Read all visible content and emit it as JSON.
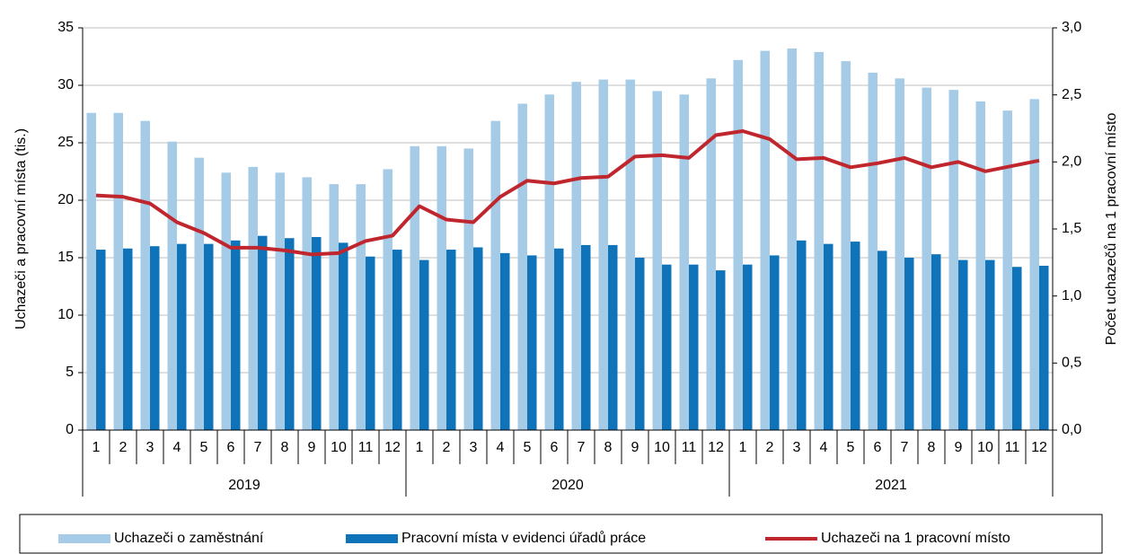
{
  "chart_data": {
    "type": "bar_line",
    "y_label": "Uchazeči a pracovní místa (tis.)",
    "y2_label": "Počet uchazečů  na 1 pracovní místo",
    "categories": [
      "1",
      "2",
      "3",
      "4",
      "5",
      "6",
      "7",
      "8",
      "9",
      "10",
      "11",
      "12",
      "1",
      "2",
      "3",
      "4",
      "5",
      "6",
      "7",
      "8",
      "9",
      "10",
      "11",
      "12",
      "1",
      "2",
      "3",
      "4",
      "5",
      "6",
      "7",
      "8",
      "9",
      "10",
      "11",
      "12"
    ],
    "years": [
      "2019",
      "2020",
      "2021"
    ],
    "ylim": [
      0,
      35
    ],
    "yticks": [
      0,
      5,
      10,
      15,
      20,
      25,
      30,
      35
    ],
    "y2lim": [
      0,
      3
    ],
    "y2ticks": [
      {
        "value": 0,
        "label": "0,0"
      },
      {
        "value": 0.5,
        "label": "0,5"
      },
      {
        "value": 1,
        "label": "1,0"
      },
      {
        "value": 1.5,
        "label": "1,5"
      },
      {
        "value": 2,
        "label": "2,0"
      },
      {
        "value": 2.5,
        "label": "2,5"
      },
      {
        "value": 3,
        "label": "3,0"
      }
    ],
    "grid": true,
    "legend": "bottom",
    "series": [
      {
        "name": "Uchazeči o zaměstnání",
        "type": "bar",
        "color": "#a6cbe6",
        "values": [
          27.6,
          27.6,
          26.9,
          25.1,
          23.7,
          22.4,
          22.9,
          22.4,
          22.0,
          21.4,
          21.4,
          22.7,
          24.7,
          24.7,
          24.5,
          26.9,
          28.4,
          29.2,
          30.3,
          30.5,
          30.5,
          29.5,
          29.2,
          30.6,
          32.2,
          33.0,
          33.2,
          32.9,
          32.1,
          31.1,
          30.6,
          29.8,
          29.6,
          28.6,
          27.8,
          28.8
        ]
      },
      {
        "name": "Pracovní místa v evidenci úřadů práce",
        "type": "bar",
        "color": "#0f73ba",
        "values": [
          15.7,
          15.8,
          16.0,
          16.2,
          16.2,
          16.5,
          16.9,
          16.7,
          16.8,
          16.3,
          15.1,
          15.7,
          14.8,
          15.7,
          15.9,
          15.4,
          15.2,
          15.8,
          16.1,
          16.1,
          15.0,
          14.4,
          14.4,
          13.9,
          14.4,
          15.2,
          16.5,
          16.2,
          16.4,
          15.6,
          15.0,
          15.3,
          14.8,
          14.8,
          14.2,
          14.3
        ]
      },
      {
        "name": "Uchazeči na 1 pracovní místo",
        "type": "line",
        "axis": "y2",
        "color": "#c0262d",
        "values": [
          1.75,
          1.74,
          1.69,
          1.55,
          1.47,
          1.36,
          1.36,
          1.34,
          1.31,
          1.32,
          1.41,
          1.45,
          1.67,
          1.57,
          1.55,
          1.74,
          1.86,
          1.84,
          1.88,
          1.89,
          2.04,
          2.05,
          2.03,
          2.2,
          2.23,
          2.17,
          2.02,
          2.03,
          1.96,
          1.99,
          2.03,
          1.96,
          2.0,
          1.93,
          1.97,
          2.01
        ]
      }
    ]
  }
}
